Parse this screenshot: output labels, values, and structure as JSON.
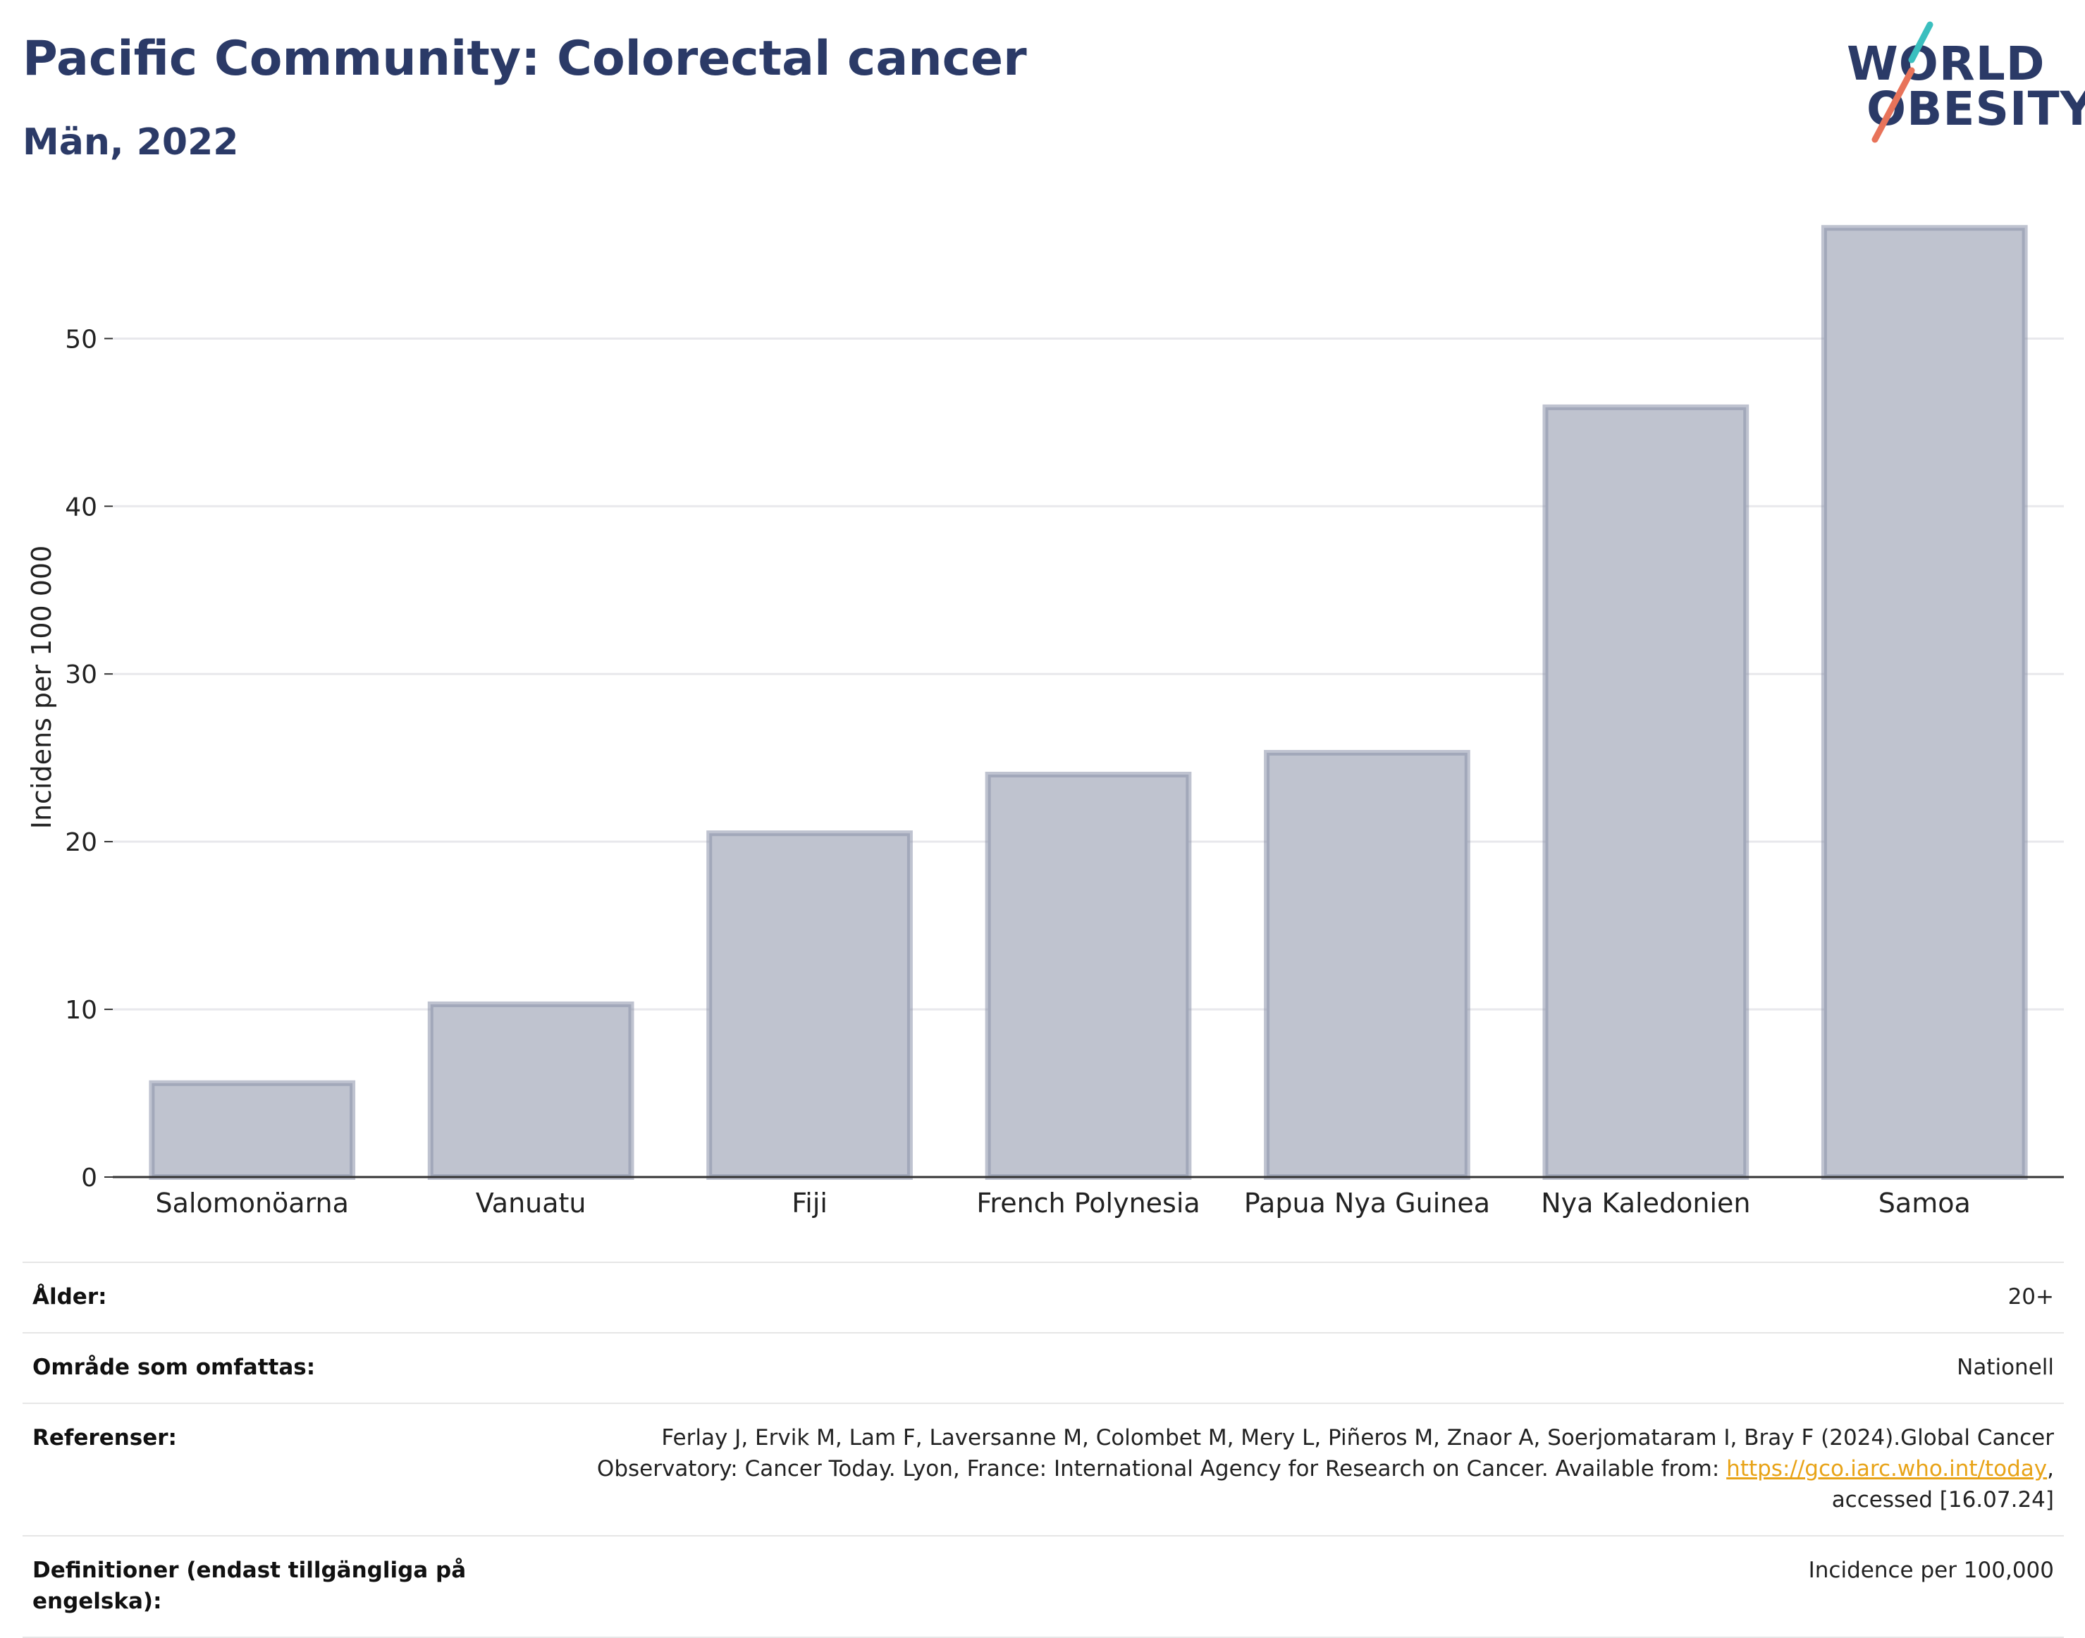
{
  "header": {
    "title": "Pacific Community: Colorectal cancer",
    "subtitle": "Män, 2022"
  },
  "logo": {
    "line1": "WORLD",
    "line2": "OBESITY",
    "colors": {
      "text": "#2b3a67",
      "slash_top": "#3bbfbf",
      "slash_bottom": "#e8735a"
    }
  },
  "chart_data": {
    "type": "bar",
    "categories": [
      "Salomonöarna",
      "Vanuatu",
      "Fiji",
      "French Polynesia",
      "Papua Nya Guinea",
      "Nya Kaledonien",
      "Samoa"
    ],
    "values": [
      5.6,
      10.3,
      20.5,
      24.0,
      25.3,
      45.9,
      56.6
    ],
    "ylabel": "Incidens per 100 000",
    "xlabel": "",
    "ylim": [
      0,
      58
    ],
    "yticks": [
      0,
      10,
      20,
      30,
      40,
      50
    ],
    "grid": true,
    "bar_color": "#bfc3cf",
    "bar_border_color": "#8a91aa"
  },
  "meta": {
    "rows": [
      {
        "label": "Ålder:",
        "value": "20+"
      },
      {
        "label": "Område som omfattas:",
        "value": "Nationell"
      },
      {
        "label": "Referenser:",
        "value_before": "Ferlay J, Ervik M, Lam F, Laversanne M, Colombet M, Mery L, Piñeros M, Znaor A, Soerjomataram I, Bray F (2024).Global Cancer Observatory: Cancer Today. Lyon, France: International Agency for Research on Cancer. Available from: ",
        "link": "https://gco.iarc.who.int/today",
        "value_after": ", accessed [16.07.24]"
      },
      {
        "label": "Definitioner (endast tillgängliga på engelska):",
        "value": "Incidence per 100,000"
      }
    ]
  }
}
